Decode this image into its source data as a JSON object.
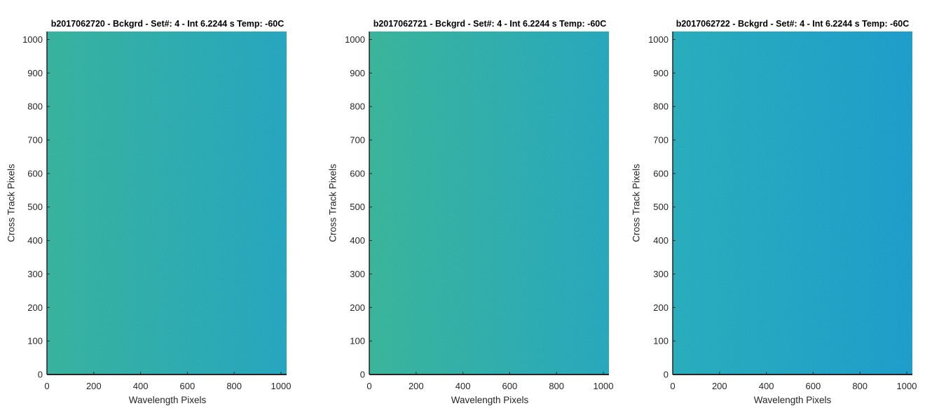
{
  "chart_data": [
    {
      "type": "heatmap",
      "title": "b2017062720 - Bckgrd - Set#: 4 - Int 6.2244 s Temp: -60C",
      "xlabel": "Wavelength Pixels",
      "ylabel": "Cross Track Pixels",
      "xlim": [
        0,
        1024
      ],
      "ylim": [
        0,
        1024
      ],
      "xticks": [
        0,
        200,
        400,
        600,
        800,
        1000
      ],
      "yticks": [
        0,
        100,
        200,
        300,
        400,
        500,
        600,
        700,
        800,
        900,
        1000
      ],
      "colormap": "parula",
      "gradient": {
        "left_color": "#2aae9d",
        "right_color": "#16a0c3"
      },
      "grid": false
    },
    {
      "type": "heatmap",
      "title": "b2017062721 - Bckgrd - Set#: 4 - Int 6.2244 s Temp: -60C",
      "xlabel": "Wavelength Pixels",
      "ylabel": "Cross Track Pixels",
      "xlim": [
        0,
        1024
      ],
      "ylim": [
        0,
        1024
      ],
      "xticks": [
        0,
        200,
        400,
        600,
        800,
        1000
      ],
      "yticks": [
        0,
        100,
        200,
        300,
        400,
        500,
        600,
        700,
        800,
        900,
        1000
      ],
      "colormap": "parula",
      "gradient": {
        "left_color": "#2cb09a",
        "right_color": "#18a2c0"
      },
      "grid": false
    },
    {
      "type": "heatmap",
      "title": "b2017062722 - Bckgrd - Set#: 4 - Int 6.2244 s Temp: -60C",
      "xlabel": "Wavelength Pixels",
      "ylabel": "Cross Track Pixels",
      "xlim": [
        0,
        1024
      ],
      "ylim": [
        0,
        1024
      ],
      "xticks": [
        0,
        200,
        400,
        600,
        800,
        1000
      ],
      "yticks": [
        0,
        100,
        200,
        300,
        400,
        500,
        600,
        700,
        800,
        900,
        1000
      ],
      "colormap": "parula",
      "gradient": {
        "left_color": "#19a8bf",
        "right_color": "#0e96cf"
      },
      "grid": false
    }
  ],
  "colors": {
    "axis": "#262626",
    "title": "#000000"
  }
}
